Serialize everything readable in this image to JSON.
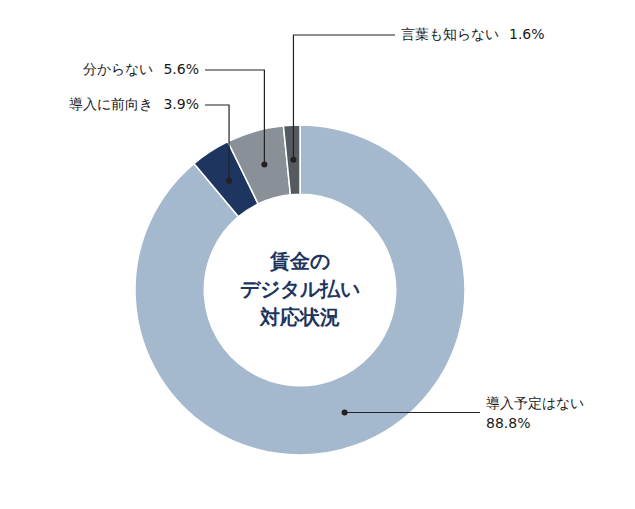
{
  "chart_data": {
    "type": "donut",
    "categories": [
      "導入予定はない",
      "導入に前向き",
      "分からない",
      "言葉も知らない"
    ],
    "values": [
      88.8,
      3.9,
      5.6,
      1.6
    ],
    "colors": [
      "#a4b8ce",
      "#1e3560",
      "#8a9098",
      "#555a61"
    ],
    "data_labels": true,
    "value_labels": [
      "88.8%",
      "3.9%",
      "5.6%",
      "1.6%"
    ],
    "annotations": [
      "賃金の",
      "デジタル払い",
      "対応状況"
    ]
  }
}
